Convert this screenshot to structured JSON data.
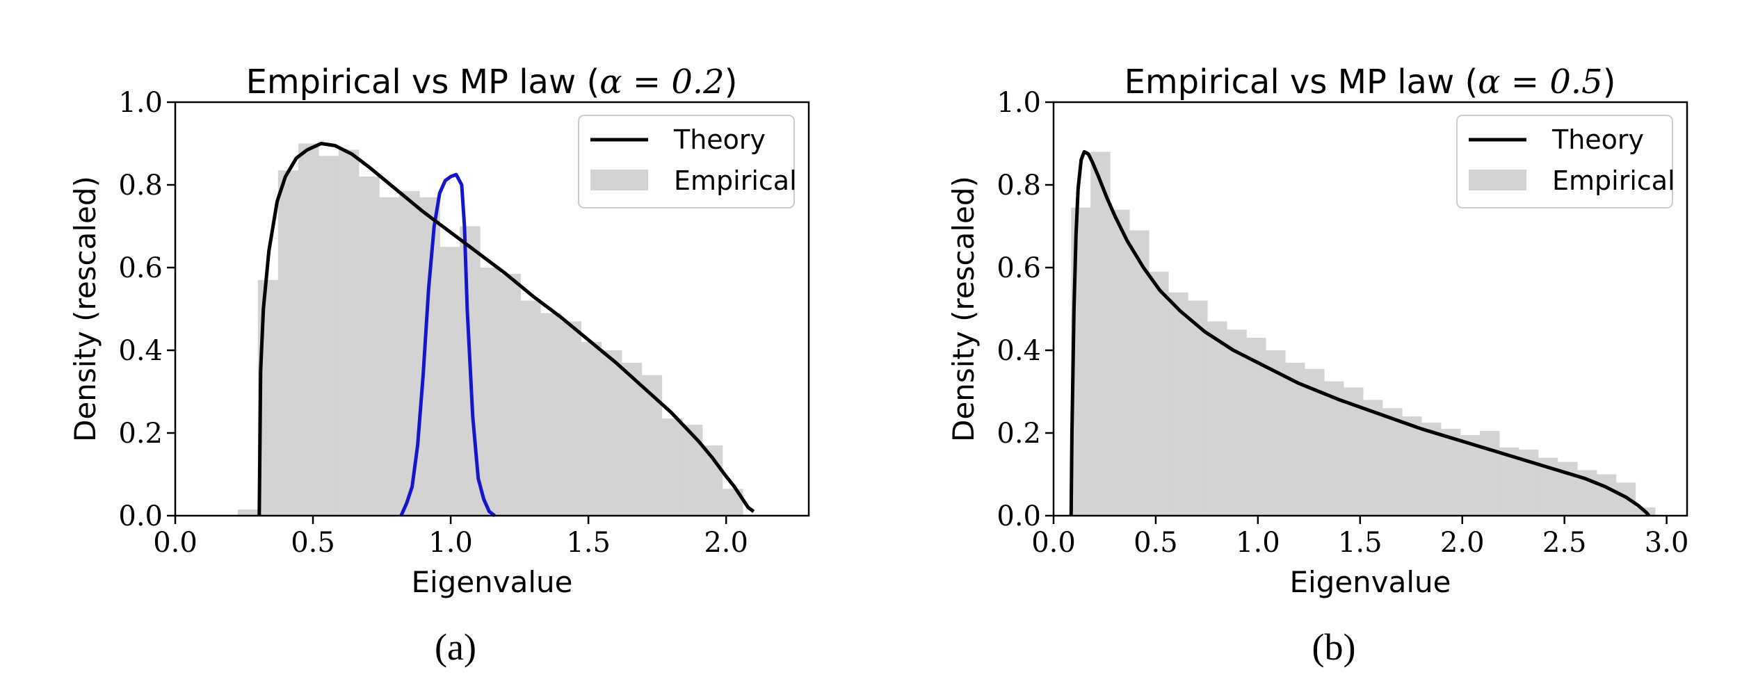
{
  "chart_data": [
    {
      "type": "bar",
      "title_prefix": "Empirical vs MP law (",
      "title_math": "α = 0.2",
      "title_suffix": ")",
      "xlabel": "Eigenvalue",
      "ylabel": "Density (rescaled)",
      "xlim": [
        0.0,
        2.3
      ],
      "ylim": [
        0.0,
        1.0
      ],
      "xticks": [
        "0.0",
        "0.5",
        "1.0",
        "1.5",
        "2.0"
      ],
      "xtick_values": [
        0.0,
        0.5,
        1.0,
        1.5,
        2.0
      ],
      "yticks": [
        "0.0",
        "0.2",
        "0.4",
        "0.6",
        "0.8",
        "1.0"
      ],
      "ytick_values": [
        0.0,
        0.2,
        0.4,
        0.6,
        0.8,
        1.0
      ],
      "legend": {
        "position": "top-right",
        "entries": [
          "Theory",
          "Empirical"
        ]
      },
      "histogram": {
        "name": "Empirical",
        "color": "#d3d3d3",
        "bin_width": 0.07333,
        "bin_starts": [
          0.227,
          0.3,
          0.373,
          0.447,
          0.52,
          0.593,
          0.667,
          0.74,
          0.813,
          0.887,
          0.96,
          1.033,
          1.107,
          1.18,
          1.253,
          1.327,
          1.4,
          1.473,
          1.547,
          1.62,
          1.693,
          1.767,
          1.84,
          1.913,
          1.987,
          2.06
        ],
        "values": [
          0.015,
          0.57,
          0.835,
          0.9,
          0.87,
          0.885,
          0.82,
          0.77,
          0.785,
          0.77,
          0.65,
          0.7,
          0.6,
          0.585,
          0.52,
          0.49,
          0.47,
          0.42,
          0.4,
          0.37,
          0.34,
          0.235,
          0.22,
          0.17,
          0.065,
          0.0
        ]
      },
      "theory": {
        "name": "Theory",
        "color": "#000000",
        "x": [
          0.305,
          0.31,
          0.32,
          0.34,
          0.37,
          0.4,
          0.44,
          0.48,
          0.53,
          0.58,
          0.64,
          0.7,
          0.8,
          0.9,
          1.0,
          1.1,
          1.2,
          1.3,
          1.4,
          1.5,
          1.6,
          1.7,
          1.8,
          1.9,
          1.95,
          2.0,
          2.03,
          2.06,
          2.08,
          2.1
        ],
        "y": [
          0.0,
          0.35,
          0.5,
          0.64,
          0.76,
          0.82,
          0.865,
          0.885,
          0.9,
          0.895,
          0.875,
          0.845,
          0.79,
          0.735,
          0.685,
          0.635,
          0.585,
          0.53,
          0.48,
          0.425,
          0.37,
          0.31,
          0.25,
          0.18,
          0.14,
          0.095,
          0.07,
          0.04,
          0.02,
          0.01
        ]
      },
      "extra_curve": {
        "color": "#1515cc",
        "x": [
          0.82,
          0.84,
          0.86,
          0.88,
          0.9,
          0.92,
          0.94,
          0.96,
          0.98,
          1.0,
          1.02,
          1.04,
          1.05,
          1.06,
          1.08,
          1.1,
          1.12,
          1.14,
          1.16
        ],
        "y": [
          0.0,
          0.03,
          0.07,
          0.17,
          0.34,
          0.55,
          0.7,
          0.78,
          0.81,
          0.82,
          0.825,
          0.8,
          0.7,
          0.5,
          0.24,
          0.09,
          0.04,
          0.01,
          0.0
        ]
      },
      "caption": "(a)"
    },
    {
      "type": "bar",
      "title_prefix": "Empirical vs MP law (",
      "title_math": "α = 0.5",
      "title_suffix": ")",
      "xlabel": "Eigenvalue",
      "ylabel": "Density (rescaled)",
      "xlim": [
        0.0,
        3.1
      ],
      "ylim": [
        0.0,
        1.0
      ],
      "xticks": [
        "0.0",
        "0.5",
        "1.0",
        "1.5",
        "2.0",
        "2.5",
        "3.0"
      ],
      "xtick_values": [
        0.0,
        0.5,
        1.0,
        1.5,
        2.0,
        2.5,
        3.0
      ],
      "yticks": [
        "0.0",
        "0.2",
        "0.4",
        "0.6",
        "0.8",
        "1.0"
      ],
      "ytick_values": [
        0.0,
        0.2,
        0.4,
        0.6,
        0.8,
        1.0
      ],
      "legend": {
        "position": "top-right",
        "entries": [
          "Theory",
          "Empirical"
        ]
      },
      "histogram": {
        "name": "Empirical",
        "color": "#d3d3d3",
        "bin_width": 0.0952,
        "bin_starts": [
          0.086,
          0.181,
          0.276,
          0.371,
          0.467,
          0.562,
          0.657,
          0.752,
          0.848,
          0.943,
          1.038,
          1.133,
          1.229,
          1.324,
          1.419,
          1.514,
          1.61,
          1.705,
          1.8,
          1.895,
          1.991,
          2.086,
          2.181,
          2.276,
          2.371,
          2.467,
          2.562,
          2.657,
          2.752,
          2.848
        ],
        "values": [
          0.745,
          0.88,
          0.74,
          0.69,
          0.59,
          0.54,
          0.52,
          0.47,
          0.45,
          0.43,
          0.4,
          0.37,
          0.355,
          0.325,
          0.31,
          0.28,
          0.26,
          0.24,
          0.225,
          0.21,
          0.195,
          0.205,
          0.165,
          0.16,
          0.14,
          0.13,
          0.11,
          0.1,
          0.08,
          0.02
        ]
      },
      "theory": {
        "name": "Theory",
        "color": "#000000",
        "x": [
          0.086,
          0.09,
          0.1,
          0.11,
          0.12,
          0.135,
          0.15,
          0.17,
          0.19,
          0.22,
          0.26,
          0.3,
          0.36,
          0.44,
          0.52,
          0.62,
          0.74,
          0.88,
          1.0,
          1.2,
          1.4,
          1.6,
          1.8,
          2.0,
          2.2,
          2.4,
          2.6,
          2.7,
          2.8,
          2.86,
          2.9,
          2.914
        ],
        "y": [
          0.0,
          0.2,
          0.5,
          0.68,
          0.79,
          0.86,
          0.88,
          0.875,
          0.855,
          0.82,
          0.77,
          0.725,
          0.665,
          0.6,
          0.545,
          0.495,
          0.445,
          0.4,
          0.37,
          0.32,
          0.28,
          0.245,
          0.21,
          0.18,
          0.15,
          0.12,
          0.09,
          0.07,
          0.045,
          0.025,
          0.008,
          0.0
        ]
      },
      "caption": "(b)"
    }
  ]
}
